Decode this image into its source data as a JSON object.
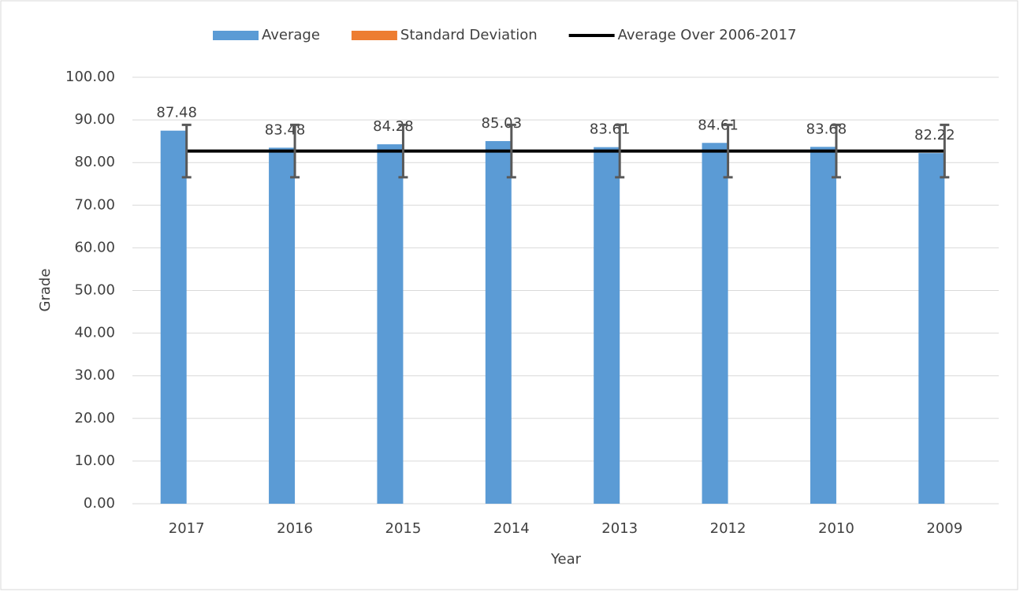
{
  "chart_data": {
    "type": "bar",
    "x_label": "Year",
    "y_label": "Grade",
    "categories": [
      "2017",
      "2016",
      "2015",
      "2014",
      "2013",
      "2012",
      "2010",
      "2009"
    ],
    "series": [
      {
        "name": "Average",
        "type": "bar",
        "color": "#5b9bd5",
        "values": [
          87.48,
          83.48,
          84.28,
          85.03,
          83.61,
          84.61,
          83.68,
          82.22
        ]
      },
      {
        "name": "Standard Deviation",
        "type": "error",
        "color": "#ed7d31",
        "values": [
          6.15,
          6.15,
          6.15,
          6.15,
          6.15,
          6.15,
          6.15,
          6.15
        ]
      },
      {
        "name": "Average Over 2006-2017",
        "type": "line",
        "color": "#000000",
        "values": [
          82.7,
          82.7,
          82.7,
          82.7,
          82.7,
          82.7,
          82.7,
          82.7
        ]
      }
    ],
    "ylim": [
      0,
      100
    ],
    "yticks": [
      {
        "value": 0,
        "label": "0.00"
      },
      {
        "value": 10,
        "label": "10.00"
      },
      {
        "value": 20,
        "label": "20.00"
      },
      {
        "value": 30,
        "label": "30.00"
      },
      {
        "value": 40,
        "label": "40.00"
      },
      {
        "value": 50,
        "label": "50.00"
      },
      {
        "value": 60,
        "label": "60.00"
      },
      {
        "value": 70,
        "label": "70.00"
      },
      {
        "value": 80,
        "label": "80.00"
      },
      {
        "value": 90,
        "label": "90.00"
      },
      {
        "value": 100,
        "label": "100.00"
      }
    ],
    "grid": true,
    "legend": "top"
  }
}
